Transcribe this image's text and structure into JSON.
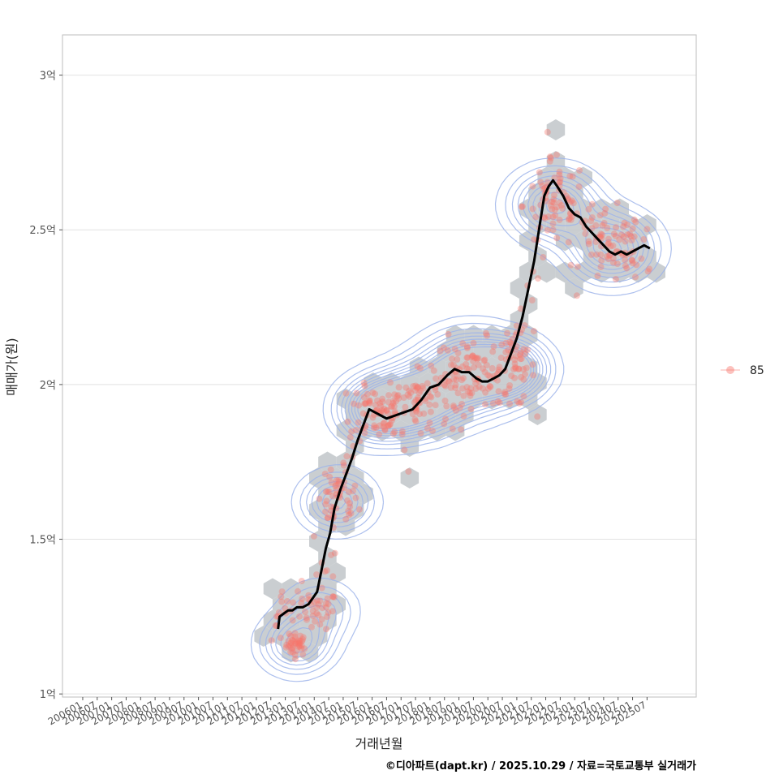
{
  "chart_data": {
    "type": "scatter",
    "xlabel": "거래년월",
    "ylabel": "매매가(원)",
    "x_ticks": [
      "200601",
      "200607",
      "200701",
      "200707",
      "200801",
      "200807",
      "200901",
      "200907",
      "201001",
      "201007",
      "201101",
      "201107",
      "201201",
      "201207",
      "201301",
      "201307",
      "201401",
      "201407",
      "201501",
      "201507",
      "201601",
      "201607",
      "201701",
      "201707",
      "201801",
      "201807",
      "201901",
      "201907",
      "202001",
      "202007",
      "202101",
      "202107",
      "202201",
      "202207",
      "202301",
      "202307",
      "202401",
      "202407",
      "202501",
      "202507"
    ],
    "y_ticks": [
      {
        "value": 1.0,
        "label": "1억"
      },
      {
        "value": 1.5,
        "label": "1.5억"
      },
      {
        "value": 2.0,
        "label": "2억"
      },
      {
        "value": 2.5,
        "label": "2.5억"
      },
      {
        "value": 3.0,
        "label": "3억"
      }
    ],
    "ylim": [
      0.99,
      3.13
    ],
    "xlim": [
      2005.3,
      2027.2
    ],
    "grid": "horizontal",
    "legend": {
      "position": "right",
      "entries": [
        "85"
      ]
    },
    "colors": {
      "point": "#f8766d",
      "hex": "#c4c9cc",
      "contour": "#9db4ea",
      "trend": "#000000",
      "grid": "#e2e2e2",
      "frame": "#bdbdbd"
    },
    "trend_line": [
      [
        2012.75,
        1.21
      ],
      [
        2012.8,
        1.25
      ],
      [
        2012.95,
        1.26
      ],
      [
        2013.1,
        1.27
      ],
      [
        2013.25,
        1.27
      ],
      [
        2013.4,
        1.28
      ],
      [
        2013.6,
        1.28
      ],
      [
        2013.8,
        1.29
      ],
      [
        2013.95,
        1.31
      ],
      [
        2014.1,
        1.33
      ],
      [
        2014.25,
        1.4
      ],
      [
        2014.4,
        1.47
      ],
      [
        2014.55,
        1.52
      ],
      [
        2014.7,
        1.6
      ],
      [
        2014.9,
        1.66
      ],
      [
        2015.1,
        1.71
      ],
      [
        2015.3,
        1.76
      ],
      [
        2015.5,
        1.82
      ],
      [
        2015.7,
        1.87
      ],
      [
        2015.9,
        1.92
      ],
      [
        2016.1,
        1.91
      ],
      [
        2016.3,
        1.9
      ],
      [
        2016.5,
        1.89
      ],
      [
        2016.8,
        1.9
      ],
      [
        2017.1,
        1.91
      ],
      [
        2017.4,
        1.92
      ],
      [
        2017.7,
        1.95
      ],
      [
        2018.0,
        1.99
      ],
      [
        2018.3,
        2.0
      ],
      [
        2018.6,
        2.03
      ],
      [
        2018.85,
        2.05
      ],
      [
        2019.1,
        2.04
      ],
      [
        2019.35,
        2.04
      ],
      [
        2019.6,
        2.02
      ],
      [
        2019.8,
        2.01
      ],
      [
        2020.0,
        2.01
      ],
      [
        2020.2,
        2.02
      ],
      [
        2020.4,
        2.03
      ],
      [
        2020.6,
        2.05
      ],
      [
        2020.8,
        2.1
      ],
      [
        2021.0,
        2.15
      ],
      [
        2021.2,
        2.22
      ],
      [
        2021.4,
        2.31
      ],
      [
        2021.6,
        2.4
      ],
      [
        2021.8,
        2.52
      ],
      [
        2021.95,
        2.61
      ],
      [
        2022.1,
        2.64
      ],
      [
        2022.25,
        2.66
      ],
      [
        2022.4,
        2.64
      ],
      [
        2022.6,
        2.61
      ],
      [
        2022.8,
        2.57
      ],
      [
        2023.0,
        2.55
      ],
      [
        2023.2,
        2.54
      ],
      [
        2023.4,
        2.51
      ],
      [
        2023.6,
        2.49
      ],
      [
        2023.8,
        2.47
      ],
      [
        2024.0,
        2.45
      ],
      [
        2024.2,
        2.43
      ],
      [
        2024.4,
        2.42
      ],
      [
        2024.6,
        2.43
      ],
      [
        2024.8,
        2.42
      ],
      [
        2025.0,
        2.43
      ],
      [
        2025.2,
        2.44
      ],
      [
        2025.4,
        2.45
      ],
      [
        2025.6,
        2.44
      ]
    ],
    "point_clusters": [
      {
        "x": 2013.4,
        "y": 1.16,
        "count": 40,
        "spread_x": 0.3,
        "spread_y": 0.03
      },
      {
        "x": 2014.2,
        "y": 1.27,
        "count": 25,
        "spread_x": 0.5,
        "spread_y": 0.05
      },
      {
        "x": 2014.8,
        "y": 1.62,
        "count": 40,
        "spread_x": 0.6,
        "spread_y": 0.07
      },
      {
        "x": 2016.2,
        "y": 1.92,
        "count": 60,
        "spread_x": 0.8,
        "spread_y": 0.08
      },
      {
        "x": 2017.6,
        "y": 1.95,
        "count": 60,
        "spread_x": 0.9,
        "spread_y": 0.08
      },
      {
        "x": 2019.4,
        "y": 2.04,
        "count": 70,
        "spread_x": 1.0,
        "spread_y": 0.09
      },
      {
        "x": 2020.9,
        "y": 2.05,
        "count": 50,
        "spread_x": 0.6,
        "spread_y": 0.1
      },
      {
        "x": 2022.3,
        "y": 2.58,
        "count": 50,
        "spread_x": 0.9,
        "spread_y": 0.12
      },
      {
        "x": 2024.3,
        "y": 2.44,
        "count": 50,
        "spread_x": 0.9,
        "spread_y": 0.1
      }
    ]
  },
  "caption": "©디아파트(dapt.kr) / 2025.10.29 / 자료=국토교통부 실거래가"
}
